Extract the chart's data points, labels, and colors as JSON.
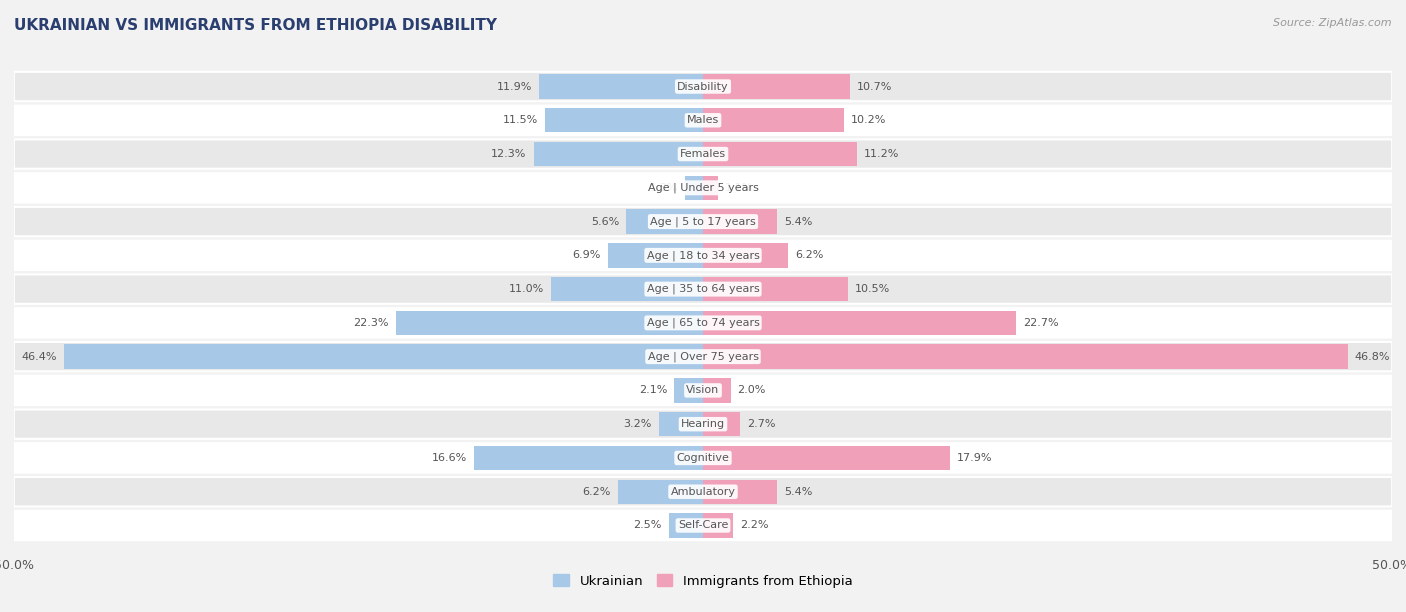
{
  "title": "UKRAINIAN VS IMMIGRANTS FROM ETHIOPIA DISABILITY",
  "source": "Source: ZipAtlas.com",
  "categories": [
    "Disability",
    "Males",
    "Females",
    "Age | Under 5 years",
    "Age | 5 to 17 years",
    "Age | 18 to 34 years",
    "Age | 35 to 64 years",
    "Age | 65 to 74 years",
    "Age | Over 75 years",
    "Vision",
    "Hearing",
    "Cognitive",
    "Ambulatory",
    "Self-Care"
  ],
  "ukrainian": [
    11.9,
    11.5,
    12.3,
    1.3,
    5.6,
    6.9,
    11.0,
    22.3,
    46.4,
    2.1,
    3.2,
    16.6,
    6.2,
    2.5
  ],
  "ethiopia": [
    10.7,
    10.2,
    11.2,
    1.1,
    5.4,
    6.2,
    10.5,
    22.7,
    46.8,
    2.0,
    2.7,
    17.9,
    5.4,
    2.2
  ],
  "max_val": 50.0,
  "ukrainian_color": "#a8c8e8",
  "ethiopia_color": "#f0a0b8",
  "bg_color": "#f2f2f2",
  "row_light_color": "#ffffff",
  "row_dark_color": "#e8e8e8",
  "title_color": "#2a3f6f",
  "label_color": "#555555",
  "value_color": "#555555",
  "legend_ukrainian": "Ukrainian",
  "legend_ethiopia": "Immigrants from Ethiopia"
}
